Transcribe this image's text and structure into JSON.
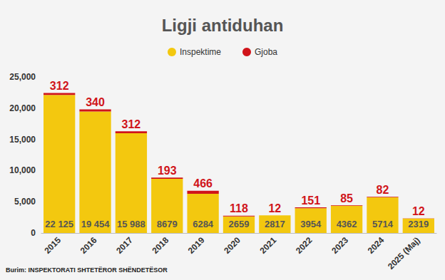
{
  "chart_data": {
    "type": "bar",
    "title": "Ligji antiduhan",
    "source": "Burim: INSPEKTORATI SHTETËROR SHËNDETËSOR",
    "categories": [
      "2015",
      "2016",
      "2017",
      "2018",
      "2019",
      "2020",
      "2021",
      "2022",
      "2023",
      "2024",
      "2025 (Maj)"
    ],
    "series": [
      {
        "name": "Inspektime",
        "color": "#f3c80f",
        "values": [
          22125,
          19454,
          15988,
          8679,
          6284,
          2659,
          2817,
          3954,
          4362,
          5714,
          2319
        ],
        "value_labels": [
          "22 125",
          "19 454",
          "15 988",
          "8679",
          "6284",
          "2659",
          "2817",
          "3954",
          "4362",
          "5714",
          "2319"
        ]
      },
      {
        "name": "Gjoba",
        "color": "#d0141a",
        "values": [
          312,
          340,
          312,
          193,
          466,
          118,
          12,
          151,
          85,
          82,
          12
        ]
      }
    ],
    "stacked": true,
    "data_labels": true,
    "legend": "top",
    "grid": false,
    "ylim": [
      0,
      25000
    ],
    "yticks": [
      0,
      5000,
      10000,
      15000,
      20000,
      25000
    ]
  }
}
